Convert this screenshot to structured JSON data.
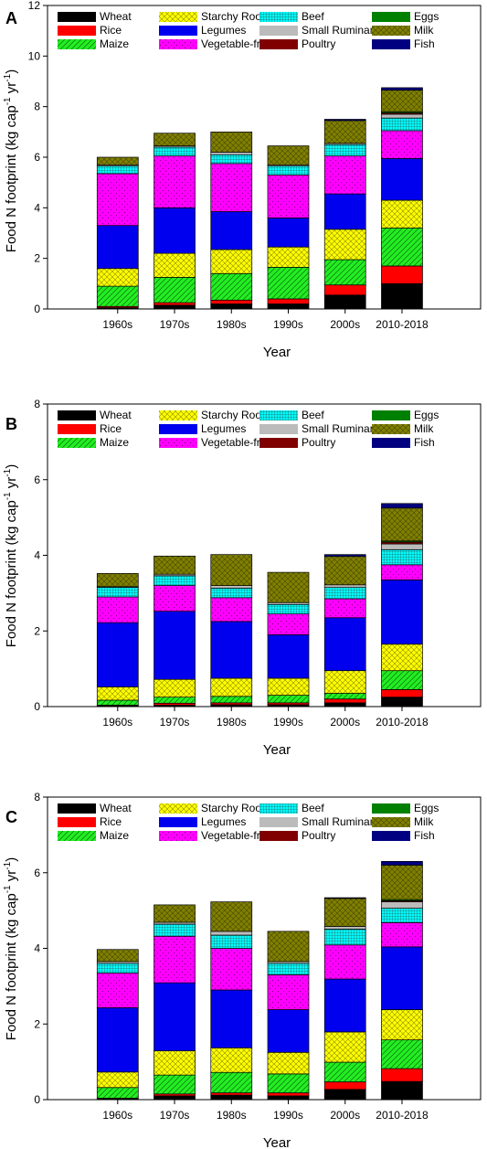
{
  "series_style": [
    {
      "name": "Wheat",
      "color": "#000000",
      "pattern": "solid"
    },
    {
      "name": "Rice",
      "color": "#ff0000",
      "pattern": "solid"
    },
    {
      "name": "Maize",
      "color": "#22ee22",
      "pattern": "hatch"
    },
    {
      "name": "Starchy Roots",
      "color": "#ffff00",
      "pattern": "cross"
    },
    {
      "name": "Legumes",
      "color": "#0000ee",
      "pattern": "solid"
    },
    {
      "name": "Vegetable-fruit",
      "color": "#ff00ff",
      "pattern": "dots"
    },
    {
      "name": "Beef",
      "color": "#00ffff",
      "pattern": "grid"
    },
    {
      "name": "Small Ruminants",
      "color": "#bbbbbb",
      "pattern": "solid"
    },
    {
      "name": "Poultry",
      "color": "#800000",
      "pattern": "solid"
    },
    {
      "name": "Eggs",
      "color": "#008000",
      "pattern": "solid"
    },
    {
      "name": "Milk",
      "color": "#808000",
      "pattern": "cross"
    },
    {
      "name": "Fish",
      "color": "#000080",
      "pattern": "solid"
    }
  ],
  "chart_data": [
    {
      "panel": "A",
      "type": "bar",
      "stacked": true,
      "ylabel_prefix": "Food N footprint (kg cap",
      "ylabel_sup1": "-1",
      "ylabel_mid": " yr",
      "ylabel_sup2": "-1",
      "ylabel_suffix": ")",
      "xlabel": "Year",
      "ylim": [
        0,
        12
      ],
      "yticks": [
        0,
        2,
        4,
        6,
        8,
        10,
        12
      ],
      "legend": "top-left",
      "categories": [
        "1960s",
        "1970s",
        "1980s",
        "1990s",
        "2000s",
        "2010-2018"
      ],
      "series": [
        {
          "name": "Wheat",
          "values": [
            0.05,
            0.15,
            0.2,
            0.2,
            0.55,
            1.0
          ]
        },
        {
          "name": "Rice",
          "values": [
            0.05,
            0.1,
            0.15,
            0.2,
            0.4,
            0.7
          ]
        },
        {
          "name": "Maize",
          "values": [
            0.8,
            1.0,
            1.05,
            1.25,
            1.0,
            1.5
          ]
        },
        {
          "name": "Starchy Roots",
          "values": [
            0.7,
            0.95,
            0.95,
            0.8,
            1.2,
            1.1
          ]
        },
        {
          "name": "Legumes",
          "values": [
            1.7,
            1.8,
            1.5,
            1.15,
            1.4,
            1.65
          ]
        },
        {
          "name": "Vegetable-fruit",
          "values": [
            2.05,
            2.05,
            1.9,
            1.7,
            1.5,
            1.1
          ]
        },
        {
          "name": "Beef",
          "values": [
            0.3,
            0.35,
            0.35,
            0.35,
            0.45,
            0.5
          ]
        },
        {
          "name": "Small Ruminants",
          "values": [
            0.05,
            0.05,
            0.1,
            0.05,
            0.05,
            0.15
          ]
        },
        {
          "name": "Poultry",
          "values": [
            0.0,
            0.0,
            0.0,
            0.0,
            0.0,
            0.05
          ]
        },
        {
          "name": "Eggs",
          "values": [
            0.0,
            0.0,
            0.0,
            0.0,
            0.0,
            0.05
          ]
        },
        {
          "name": "Milk",
          "values": [
            0.3,
            0.5,
            0.8,
            0.75,
            0.9,
            0.85
          ]
        },
        {
          "name": "Fish",
          "values": [
            0.0,
            0.0,
            0.0,
            0.0,
            0.05,
            0.1
          ]
        }
      ]
    },
    {
      "panel": "B",
      "type": "bar",
      "stacked": true,
      "ylabel_prefix": "Food N footprint (kg cap",
      "ylabel_sup1": "-1",
      "ylabel_mid": " yr",
      "ylabel_sup2": "-1",
      "ylabel_suffix": ")",
      "xlabel": "Year",
      "ylim": [
        0,
        8
      ],
      "yticks": [
        0,
        2,
        4,
        6,
        8
      ],
      "legend": "top-left",
      "categories": [
        "1960s",
        "1970s",
        "1980s",
        "1990s",
        "2000s",
        "2010-2018"
      ],
      "series": [
        {
          "name": "Wheat",
          "values": [
            0.02,
            0.04,
            0.05,
            0.05,
            0.1,
            0.25
          ]
        },
        {
          "name": "Rice",
          "values": [
            0.02,
            0.05,
            0.05,
            0.05,
            0.1,
            0.2
          ]
        },
        {
          "name": "Maize",
          "values": [
            0.13,
            0.16,
            0.17,
            0.2,
            0.15,
            0.5
          ]
        },
        {
          "name": "Starchy Roots",
          "values": [
            0.35,
            0.47,
            0.48,
            0.45,
            0.6,
            0.7
          ]
        },
        {
          "name": "Legumes",
          "values": [
            1.7,
            1.8,
            1.5,
            1.15,
            1.4,
            1.7
          ]
        },
        {
          "name": "Vegetable-fruit",
          "values": [
            0.68,
            0.68,
            0.63,
            0.55,
            0.5,
            0.4
          ]
        },
        {
          "name": "Beef",
          "values": [
            0.25,
            0.26,
            0.25,
            0.25,
            0.3,
            0.4
          ]
        },
        {
          "name": "Small Ruminants",
          "values": [
            0.02,
            0.04,
            0.07,
            0.05,
            0.07,
            0.15
          ]
        },
        {
          "name": "Poultry",
          "values": [
            0.0,
            0.0,
            0.0,
            0.0,
            0.0,
            0.05
          ]
        },
        {
          "name": "Eggs",
          "values": [
            0.0,
            0.0,
            0.0,
            0.0,
            0.0,
            0.03
          ]
        },
        {
          "name": "Milk",
          "values": [
            0.35,
            0.48,
            0.82,
            0.8,
            0.75,
            0.87
          ]
        },
        {
          "name": "Fish",
          "values": [
            0.0,
            0.0,
            0.0,
            0.0,
            0.05,
            0.12
          ]
        }
      ]
    },
    {
      "panel": "C",
      "type": "bar",
      "stacked": true,
      "ylabel_prefix": "Food N footprint (kg cap",
      "ylabel_sup1": "-1",
      "ylabel_mid": " yr",
      "ylabel_sup2": "-1",
      "ylabel_suffix": ")",
      "xlabel": "Year",
      "ylim": [
        0,
        8
      ],
      "yticks": [
        0,
        2,
        4,
        6,
        8
      ],
      "legend": "top-left",
      "categories": [
        "1960s",
        "1970s",
        "1980s",
        "1990s",
        "2000s",
        "2010-2018"
      ],
      "series": [
        {
          "name": "Wheat",
          "values": [
            0.02,
            0.1,
            0.12,
            0.1,
            0.27,
            0.48
          ]
        },
        {
          "name": "Rice",
          "values": [
            0.02,
            0.05,
            0.06,
            0.08,
            0.2,
            0.34
          ]
        },
        {
          "name": "Maize",
          "values": [
            0.28,
            0.5,
            0.54,
            0.5,
            0.52,
            0.76
          ]
        },
        {
          "name": "Starchy Roots",
          "values": [
            0.41,
            0.64,
            0.65,
            0.57,
            0.8,
            0.8
          ]
        },
        {
          "name": "Legumes",
          "values": [
            1.7,
            1.8,
            1.53,
            1.13,
            1.4,
            1.66
          ]
        },
        {
          "name": "Vegetable-fruit",
          "values": [
            0.92,
            1.23,
            1.1,
            0.92,
            0.9,
            0.64
          ]
        },
        {
          "name": "Beef",
          "values": [
            0.25,
            0.32,
            0.35,
            0.3,
            0.42,
            0.38
          ]
        },
        {
          "name": "Small Ruminants",
          "values": [
            0.05,
            0.05,
            0.1,
            0.05,
            0.07,
            0.17
          ]
        },
        {
          "name": "Poultry",
          "values": [
            0.0,
            0.0,
            0.0,
            0.0,
            0.0,
            0.03
          ]
        },
        {
          "name": "Eggs",
          "values": [
            0.0,
            0.0,
            0.0,
            0.0,
            0.0,
            0.03
          ]
        },
        {
          "name": "Milk",
          "values": [
            0.32,
            0.46,
            0.78,
            0.8,
            0.74,
            0.91
          ]
        },
        {
          "name": "Fish",
          "values": [
            0.0,
            0.0,
            0.0,
            0.0,
            0.02,
            0.1
          ]
        }
      ]
    }
  ]
}
